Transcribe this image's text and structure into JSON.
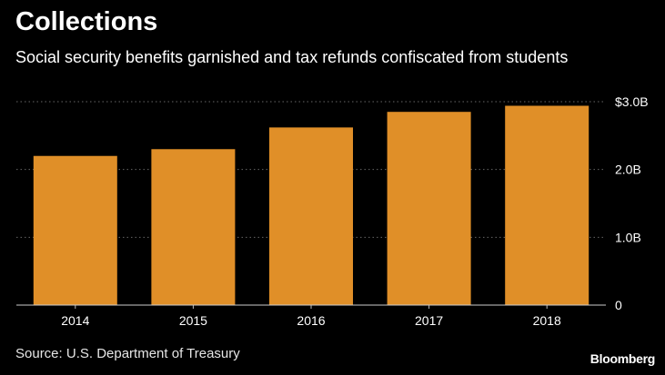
{
  "header": {
    "title": "Collections",
    "subtitle": "Social security benefits garnished and tax refunds confiscated from students"
  },
  "footer": {
    "source": "Source: U.S. Department of Treasury",
    "brand": "Bloomberg"
  },
  "colors": {
    "bar": "#e08f28",
    "background": "#000000",
    "grid": "#666666",
    "text": "#ffffff"
  },
  "chart_data": {
    "type": "bar",
    "title": "Collections",
    "subtitle": "Social security benefits garnished and tax refunds confiscated from students",
    "categories": [
      "2014",
      "2015",
      "2016",
      "2017",
      "2018"
    ],
    "values": [
      2.2,
      2.3,
      2.62,
      2.85,
      2.94
    ],
    "unit": "B",
    "ylim": [
      0,
      3.0
    ],
    "yticks": [
      {
        "value": 0,
        "label": "0"
      },
      {
        "value": 1.0,
        "label": "1.0B"
      },
      {
        "value": 2.0,
        "label": "2.0B"
      },
      {
        "value": 3.0,
        "label": "$3.0B"
      }
    ],
    "grid": true,
    "legend": "none",
    "axis_position": "right"
  }
}
